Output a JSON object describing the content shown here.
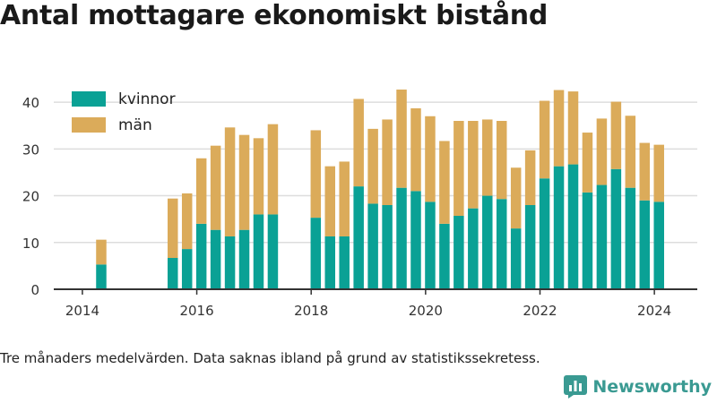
{
  "title": "Antal mottagare ekonomiskt bistånd",
  "footnote": "Tre månaders medelvärden. Data saknas ibland på grund av statistikssekretess.",
  "brand": {
    "name": "Newsworthy",
    "icon": "bar-chart-logo-icon"
  },
  "colors": {
    "kvinnor": "#0aa195",
    "man": "#dbab5a",
    "grid": "#dddddd",
    "axis": "#333333"
  },
  "chart_data": {
    "type": "bar",
    "stacked": true,
    "title": "Antal mottagare ekonomiskt bistånd",
    "xlabel": "",
    "ylabel": "",
    "ylim": [
      0,
      45
    ],
    "yticks": [
      0,
      10,
      20,
      30,
      40
    ],
    "xticks": [
      2014,
      2016,
      2018,
      2020,
      2022,
      2024
    ],
    "xlim": [
      2013.5,
      2024.75
    ],
    "grid": true,
    "legend_position": "top-left",
    "x": [
      2014.33,
      2015.58,
      2015.83,
      2016.08,
      2016.33,
      2016.58,
      2016.83,
      2017.08,
      2017.33,
      2018.08,
      2018.33,
      2018.58,
      2018.83,
      2019.08,
      2019.33,
      2019.58,
      2019.83,
      2020.08,
      2020.33,
      2020.58,
      2020.83,
      2021.08,
      2021.33,
      2021.58,
      2021.83,
      2022.08,
      2022.33,
      2022.58,
      2022.83,
      2023.08,
      2023.33,
      2023.58,
      2023.83,
      2024.08
    ],
    "series": [
      {
        "name": "kvinnor",
        "values": [
          5.3,
          6.7,
          8.6,
          14.0,
          12.7,
          11.3,
          12.7,
          16.0,
          16.0,
          15.3,
          11.3,
          11.3,
          22.0,
          18.3,
          18.0,
          21.7,
          21.0,
          18.7,
          14.0,
          15.7,
          17.3,
          20.0,
          19.3,
          13.0,
          18.0,
          23.7,
          26.3,
          26.7,
          20.7,
          22.3,
          25.7,
          21.7,
          19.0,
          18.7
        ]
      },
      {
        "name": "män",
        "values": [
          5.3,
          12.7,
          11.9,
          14.0,
          18.0,
          23.3,
          20.3,
          16.3,
          19.3,
          18.7,
          15.0,
          16.0,
          18.7,
          16.0,
          18.3,
          21.0,
          17.7,
          18.3,
          17.7,
          20.3,
          18.7,
          16.3,
          16.7,
          13.0,
          11.7,
          16.6,
          16.3,
          15.6,
          12.8,
          14.2,
          14.4,
          15.4,
          12.3,
          12.2
        ]
      }
    ]
  }
}
